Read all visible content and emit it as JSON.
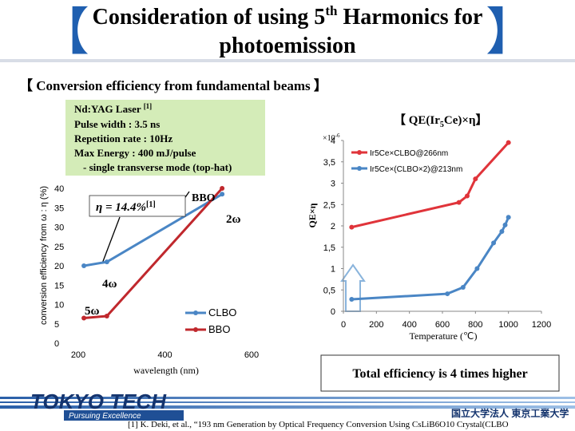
{
  "slide": {
    "title_parts": [
      "Consideration of using 5",
      "th",
      " Harmonics for",
      "photoemission"
    ],
    "section": "【 Conversion efficiency from fundamental beams 】",
    "laser_title": "Nd:YAG Laser ",
    "laser_ref": "[1]",
    "laser_lines": [
      "Pulse width : 3.5 ns",
      "Repetition rate : 10Hz",
      "Max Energy : 400 mJ/pulse",
      "- single transverse mode (top-hat)"
    ],
    "conclusion": "Total efficiency is 4 times higher",
    "footnote": "[1] K. Deki, et al., “193 nm Generation by Optical Frequency Conversion Using CsLiB6O10 Crystal(CLBO",
    "logo": "TOKYO TECH",
    "motto": "Pursuing Excellence",
    "university": "国立大学法人 東京工業大学"
  },
  "chart_data": [
    {
      "type": "line",
      "x_label": "wavelength (nm)",
      "y_label": "conversion efficiency from ω : η (%)",
      "x": [
        213,
        266,
        532
      ],
      "series": [
        {
          "name": "CLBO",
          "color": "#4a86c5",
          "values": [
            20,
            21,
            38.5
          ]
        },
        {
          "name": "BBO",
          "color": "#c0282d",
          "values": [
            6.5,
            7,
            40
          ]
        }
      ],
      "xlim": [
        200,
        600
      ],
      "xticks": [
        200,
        400,
        600
      ],
      "ylim": [
        0,
        40
      ],
      "yticks": [
        0,
        5,
        10,
        15,
        20,
        25,
        30,
        35,
        40
      ],
      "eta_text": "η = 14.4%",
      "eta_ref": "[1]",
      "annotations": [
        "BBO",
        "2ω",
        "4ω",
        "5ω"
      ],
      "legend": "lower right"
    },
    {
      "type": "line",
      "title_parts": [
        "【 QE(Ir",
        "5",
        "Ce)×η】"
      ],
      "multiplier": "×10",
      "multiplier_exp": "-6",
      "x_label": "Temperature (℃)",
      "y_label": "QE×η",
      "series": [
        {
          "name": "Ir5Ce×CLBO@266nm",
          "color": "#e0343a",
          "x": [
            50,
            700,
            750,
            800,
            1000
          ],
          "values": [
            1.97,
            2.55,
            2.7,
            3.1,
            3.95
          ]
        },
        {
          "name": "Ir5Ce×(CLBO×2)@213nm",
          "color": "#4a86c5",
          "x": [
            50,
            630,
            725,
            810,
            910,
            960,
            980,
            1000
          ],
          "values": [
            0.28,
            0.41,
            0.56,
            1.0,
            1.6,
            1.87,
            2.02,
            2.2
          ]
        }
      ],
      "xlim": [
        0,
        1200
      ],
      "xticks": [
        0,
        200,
        400,
        600,
        800,
        1000,
        1200
      ],
      "ylim": [
        0,
        4
      ],
      "yticks": [
        0,
        {
          "value": 0.5,
          "label": "0,5"
        },
        1,
        {
          "value": 1.5,
          "label": "1,5"
        },
        2,
        {
          "value": 2.5,
          "label": "2,5"
        },
        3,
        {
          "value": 3.5,
          "label": "3,5"
        },
        4
      ],
      "axes_lines": true,
      "legend": "upper right"
    }
  ]
}
